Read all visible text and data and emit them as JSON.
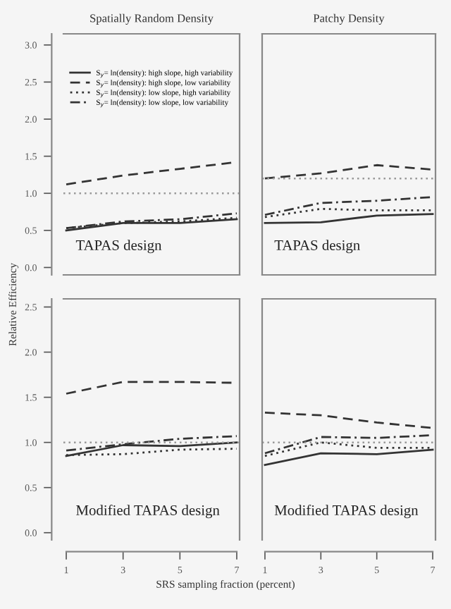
{
  "chart_data": [
    {
      "type": "line",
      "title": "Spatially Random Density",
      "ylabel": "Relative Efficiency",
      "x": [
        1,
        3,
        5,
        7
      ],
      "xlim": [
        0.9,
        7.1
      ],
      "ylim": [
        -0.1,
        3.15
      ],
      "yticks": [
        {
          "value": 0,
          "label": "0.0"
        },
        0.5,
        {
          "value": 1,
          "label": "1.0"
        },
        1.5,
        {
          "value": 2,
          "label": "2.0"
        },
        2.5,
        {
          "value": 3,
          "label": "3.0"
        }
      ],
      "tick_labels": "y",
      "legend": "top",
      "annotations": [
        "TAPAS design"
      ],
      "ref_lines": [
        {
          "axis": "y",
          "value": 1.0,
          "color": "#999999",
          "line_style": "dotted"
        }
      ],
      "series": [
        {
          "name": "S$_{y}$= ln(density): high slope, high variability",
          "color": "#333333",
          "line_style": "solid",
          "values": [
            0.5,
            0.6,
            0.6,
            0.65
          ]
        },
        {
          "name": "S$_{y}$= ln(density): high slope, low variability",
          "color": "#333333",
          "line_style": "dashed",
          "values": [
            1.12,
            1.24,
            1.33,
            1.42
          ]
        },
        {
          "name": "S$_{y}$= ln(density): low slope, high variability",
          "color": "#333333",
          "line_style": "dotted",
          "values": [
            0.53,
            0.6,
            0.62,
            0.67
          ]
        },
        {
          "name": "S$_{y}$= ln(density): low slope, low variability",
          "color": "#333333",
          "line_style": "dashdot",
          "values": [
            0.53,
            0.62,
            0.65,
            0.73
          ]
        }
      ]
    },
    {
      "type": "line",
      "title": "Patchy Density",
      "x": [
        1,
        3,
        5,
        7
      ],
      "xlim": [
        0.9,
        7.1
      ],
      "ylim": [
        -0.1,
        3.15
      ],
      "tick_labels": false,
      "annotations": [
        "TAPAS design"
      ],
      "ref_lines": [
        {
          "axis": "y",
          "value": 1.2,
          "color": "#999999",
          "line_style": "dotted"
        }
      ],
      "series": [
        {
          "color": "#333333",
          "line_style": "solid",
          "values": [
            0.6,
            0.61,
            0.7,
            0.72
          ]
        },
        {
          "color": "#333333",
          "line_style": "dashed",
          "values": [
            1.2,
            1.27,
            1.38,
            1.32
          ]
        },
        {
          "color": "#333333",
          "line_style": "dotted",
          "values": [
            0.68,
            0.79,
            0.77,
            0.77
          ]
        },
        {
          "color": "#333333",
          "line_style": "dashdot",
          "values": [
            0.71,
            0.87,
            0.9,
            0.95
          ]
        }
      ]
    },
    {
      "type": "line",
      "xlabel": "SRS sampling fraction (percent)",
      "x": [
        1,
        3,
        5,
        7
      ],
      "xlim": [
        0.9,
        7.1
      ],
      "xticks": [
        1,
        3,
        5,
        7
      ],
      "ylim": [
        -0.08,
        2.59
      ],
      "yticks": [
        {
          "value": 0,
          "label": "0.0"
        },
        0.5,
        {
          "value": 1,
          "label": "1.0"
        },
        1.5,
        {
          "value": 2,
          "label": "2.0"
        },
        2.5
      ],
      "annotations": [
        "Modified TAPAS design"
      ],
      "ref_lines": [
        {
          "axis": "y",
          "value": 1.0,
          "color": "#999999",
          "line_style": "dotted"
        }
      ],
      "series": [
        {
          "color": "#333333",
          "line_style": "solid",
          "values": [
            0.85,
            0.97,
            0.96,
            1.0
          ]
        },
        {
          "color": "#333333",
          "line_style": "dashed",
          "values": [
            1.54,
            1.67,
            1.67,
            1.66
          ]
        },
        {
          "color": "#333333",
          "line_style": "dotted",
          "values": [
            0.86,
            0.87,
            0.92,
            0.93
          ]
        },
        {
          "color": "#333333",
          "line_style": "dashdot",
          "values": [
            0.91,
            0.98,
            1.04,
            1.07
          ]
        }
      ]
    },
    {
      "type": "line",
      "x": [
        1,
        3,
        5,
        7
      ],
      "xlim": [
        0.9,
        7.1
      ],
      "xticks": [
        1,
        3,
        5,
        7
      ],
      "ylim": [
        -0.08,
        2.59
      ],
      "tick_labels": "x",
      "annotations": [
        "Modified TAPAS design"
      ],
      "ref_lines": [
        {
          "axis": "y",
          "value": 1.0,
          "color": "#999999",
          "line_style": "dotted"
        }
      ],
      "series": [
        {
          "color": "#333333",
          "line_style": "solid",
          "values": [
            0.75,
            0.88,
            0.87,
            0.92
          ]
        },
        {
          "color": "#333333",
          "line_style": "dashed",
          "values": [
            1.33,
            1.3,
            1.22,
            1.16
          ]
        },
        {
          "color": "#333333",
          "line_style": "dotted",
          "values": [
            0.85,
            1.0,
            0.94,
            0.94
          ]
        },
        {
          "color": "#333333",
          "line_style": "dashdot",
          "values": [
            0.88,
            1.06,
            1.05,
            1.08
          ]
        }
      ]
    }
  ]
}
